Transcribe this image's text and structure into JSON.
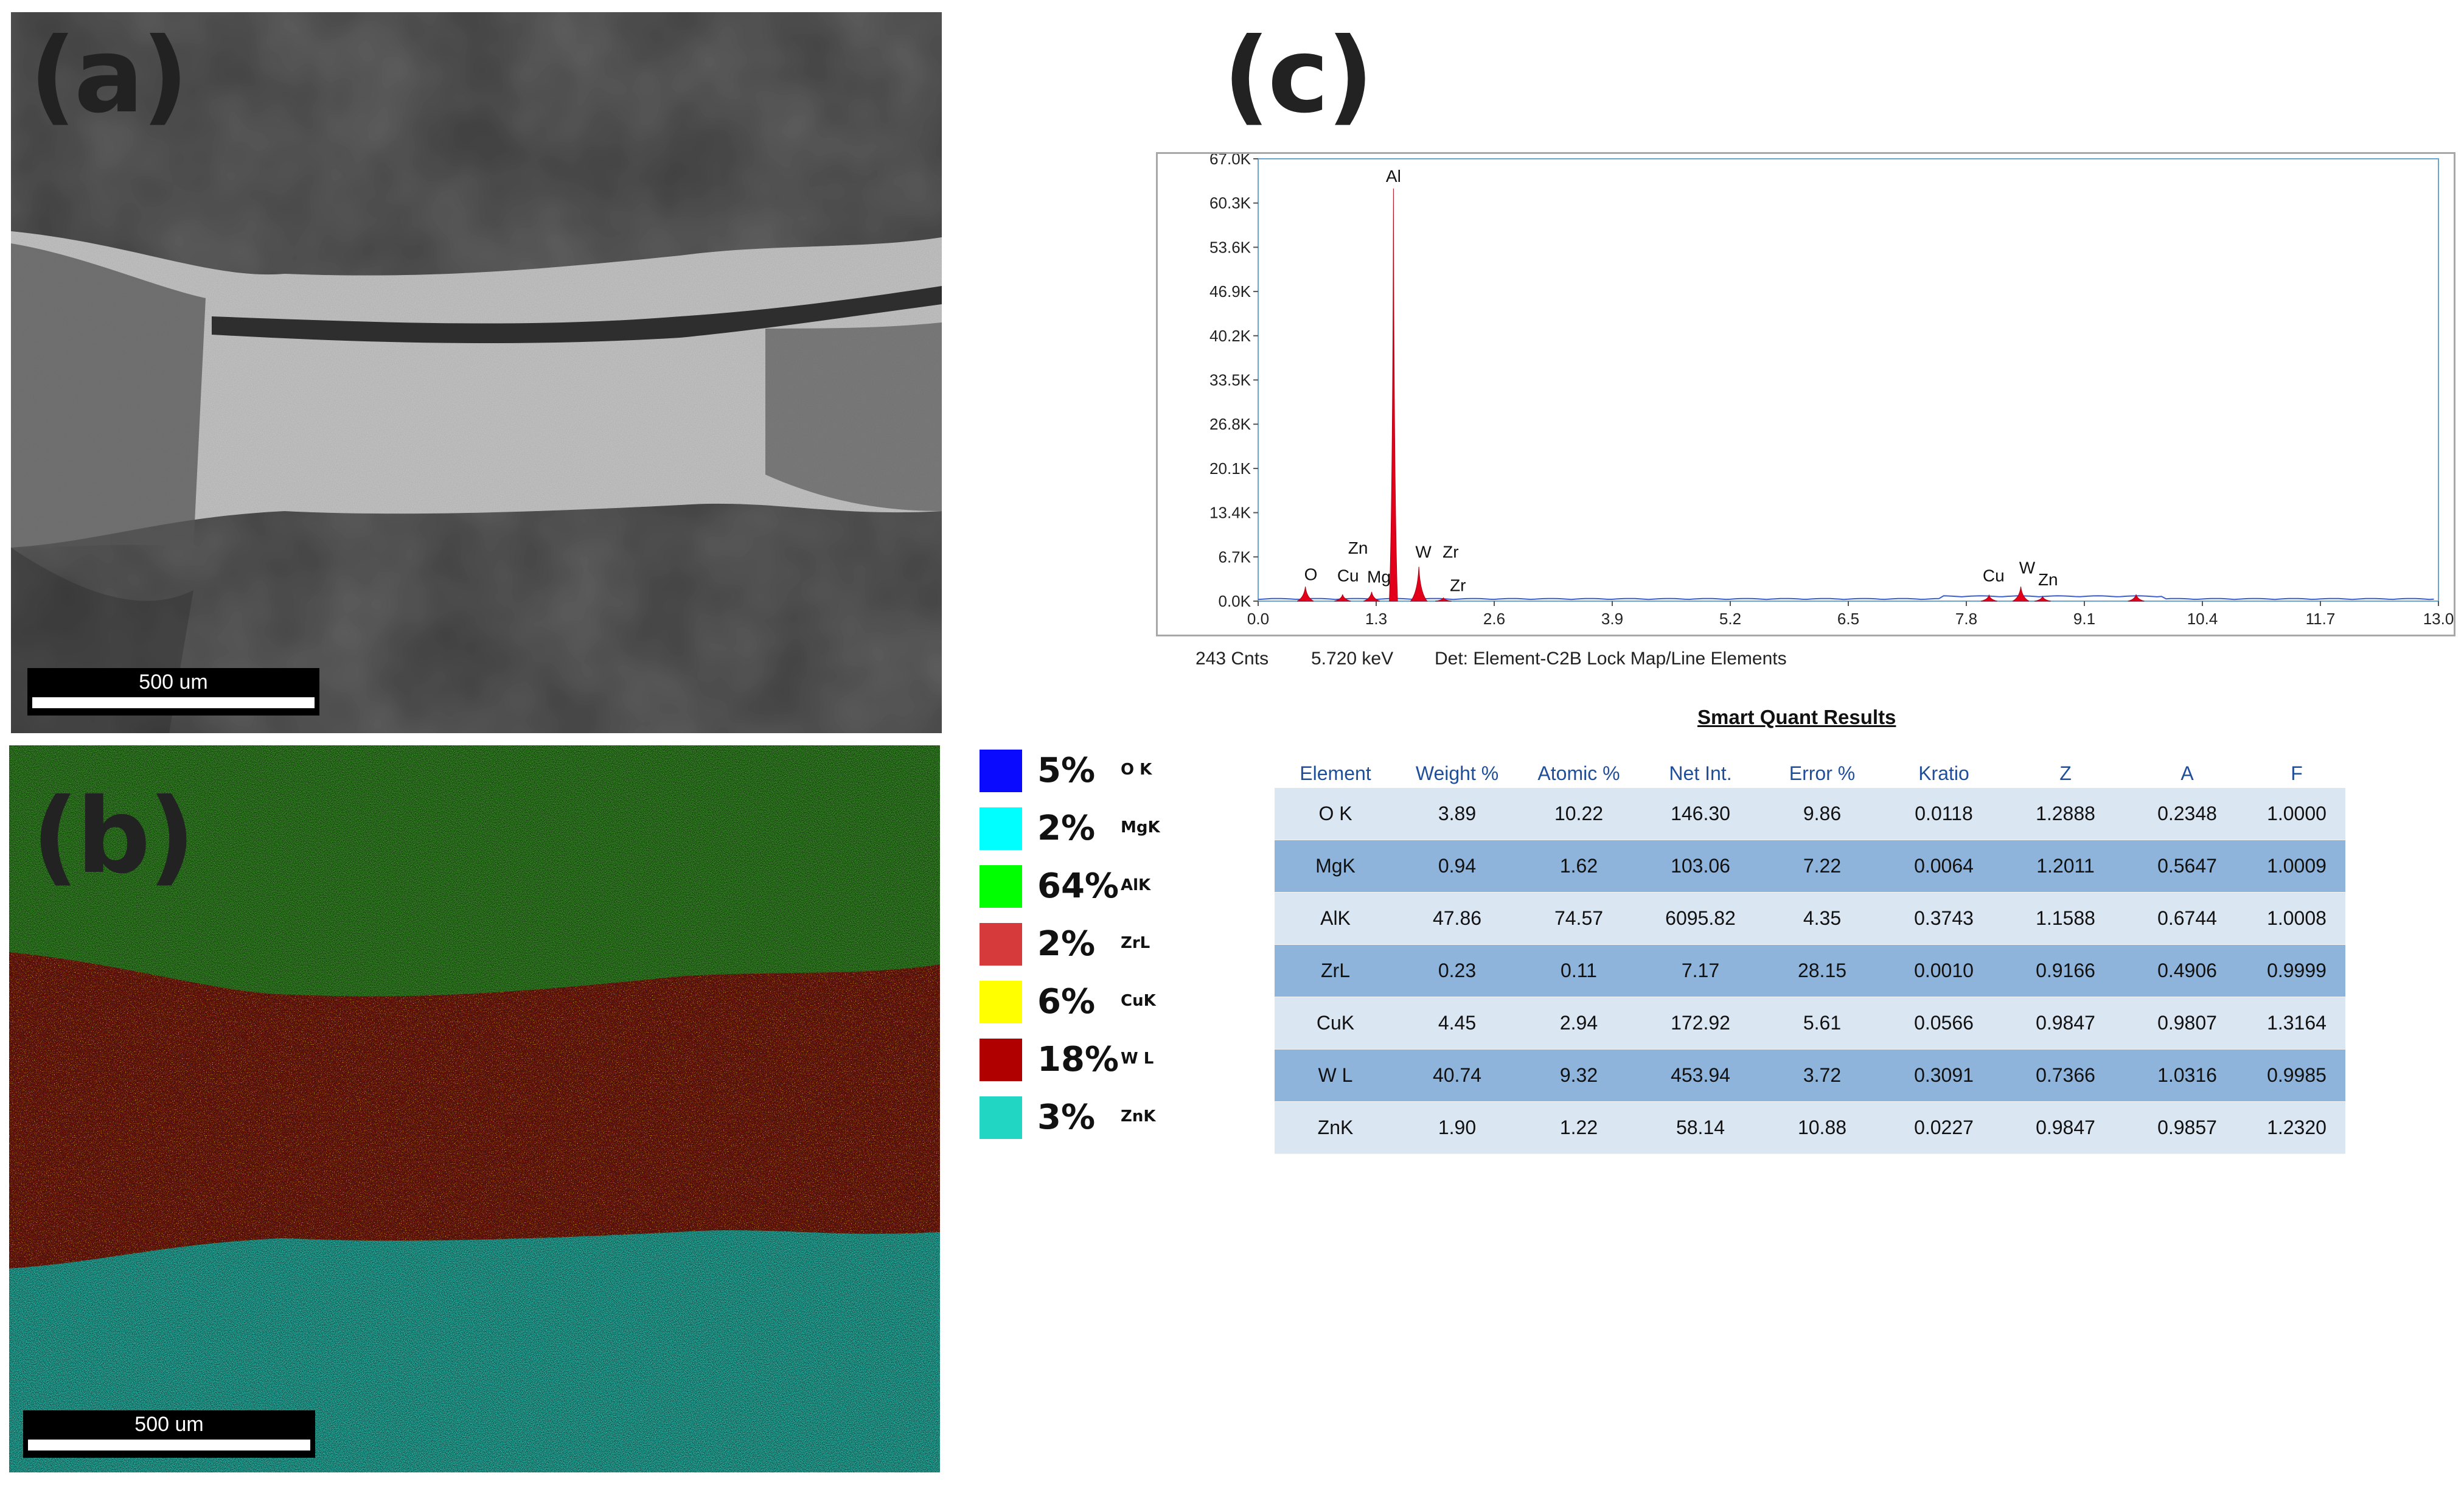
{
  "panels": {
    "a": {
      "label": "(a)",
      "scale_bar": "500 um"
    },
    "b": {
      "label": "(b)",
      "scale_bar": "500 um"
    },
    "c": {
      "label": "(c)"
    }
  },
  "legend": [
    {
      "pct": "5%",
      "element": "O K",
      "color": "#0a0aff"
    },
    {
      "pct": "2%",
      "element": "MgK",
      "color": "#00ffff"
    },
    {
      "pct": "64%",
      "element": "AlK",
      "color": "#00ff00"
    },
    {
      "pct": "2%",
      "element": "ZrL",
      "color": "#d63a3a"
    },
    {
      "pct": "6%",
      "element": "CuK",
      "color": "#ffff00"
    },
    {
      "pct": "18%",
      "element": "W L",
      "color": "#b00000"
    },
    {
      "pct": "3%",
      "element": "ZnK",
      "color": "#22d6c4"
    }
  ],
  "chart_data": {
    "type": "line",
    "x_unit": "keV",
    "xlim": [
      0.0,
      13.0
    ],
    "ylim": [
      0,
      67000
    ],
    "x_ticks": [
      "0.0",
      "1.3",
      "2.6",
      "3.9",
      "5.2",
      "6.5",
      "7.8",
      "9.1",
      "10.4",
      "11.7",
      "13.0"
    ],
    "y_ticks": [
      "0.0K",
      "6.7K",
      "13.4K",
      "20.1K",
      "26.8K",
      "33.5K",
      "40.2K",
      "46.9K",
      "53.6K",
      "60.3K",
      "67.0K"
    ],
    "peaks": [
      {
        "x": 0.52,
        "y": 2200
      },
      {
        "x": 0.93,
        "y": 1000
      },
      {
        "x": 1.25,
        "y": 1400
      },
      {
        "x": 1.49,
        "y": 62500
      },
      {
        "x": 1.77,
        "y": 5200
      },
      {
        "x": 2.04,
        "y": 500
      },
      {
        "x": 8.05,
        "y": 900
      },
      {
        "x": 8.4,
        "y": 2200
      },
      {
        "x": 8.64,
        "y": 700
      },
      {
        "x": 9.67,
        "y": 1000
      }
    ],
    "peak_labels": [
      {
        "text": "Al",
        "x": 1.49,
        "y": 63500
      },
      {
        "text": "O",
        "x": 0.58,
        "y": 3200
      },
      {
        "text": "Zn",
        "x": 1.1,
        "y": 7200
      },
      {
        "text": "Cu",
        "x": 0.99,
        "y": 3000
      },
      {
        "text": "Mg",
        "x": 1.33,
        "y": 2800
      },
      {
        "text": "W",
        "x": 1.82,
        "y": 6600
      },
      {
        "text": "Zr",
        "x": 2.12,
        "y": 6600
      },
      {
        "text": "Zr",
        "x": 2.2,
        "y": 1500
      },
      {
        "text": "Cu",
        "x": 8.1,
        "y": 3000
      },
      {
        "text": "W",
        "x": 8.47,
        "y": 4200
      },
      {
        "text": "Zn",
        "x": 8.7,
        "y": 2400
      }
    ],
    "status": {
      "counts": "243 Cnts",
      "energy": "5.720 keV",
      "detector": "Det: Element-C2B Lock Map/Line Elements"
    }
  },
  "quant_table": {
    "title": "Smart Quant Results",
    "headers": [
      "Element",
      "Weight %",
      "Atomic %",
      "Net Int.",
      "Error %",
      "Kratio",
      "Z",
      "A",
      "F"
    ],
    "rows": [
      [
        "O K",
        "3.89",
        "10.22",
        "146.30",
        "9.86",
        "0.0118",
        "1.2888",
        "0.2348",
        "1.0000"
      ],
      [
        "MgK",
        "0.94",
        "1.62",
        "103.06",
        "7.22",
        "0.0064",
        "1.2011",
        "0.5647",
        "1.0009"
      ],
      [
        "AlK",
        "47.86",
        "74.57",
        "6095.82",
        "4.35",
        "0.3743",
        "1.1588",
        "0.6744",
        "1.0008"
      ],
      [
        "ZrL",
        "0.23",
        "0.11",
        "7.17",
        "28.15",
        "0.0010",
        "0.9166",
        "0.4906",
        "0.9999"
      ],
      [
        "CuK",
        "4.45",
        "2.94",
        "172.92",
        "5.61",
        "0.0566",
        "0.9847",
        "0.9807",
        "1.3164"
      ],
      [
        "W L",
        "40.74",
        "9.32",
        "453.94",
        "3.72",
        "0.3091",
        "0.7366",
        "1.0316",
        "0.9985"
      ],
      [
        "ZnK",
        "1.90",
        "1.22",
        "58.14",
        "10.88",
        "0.0227",
        "0.9847",
        "0.9857",
        "1.2320"
      ]
    ]
  }
}
